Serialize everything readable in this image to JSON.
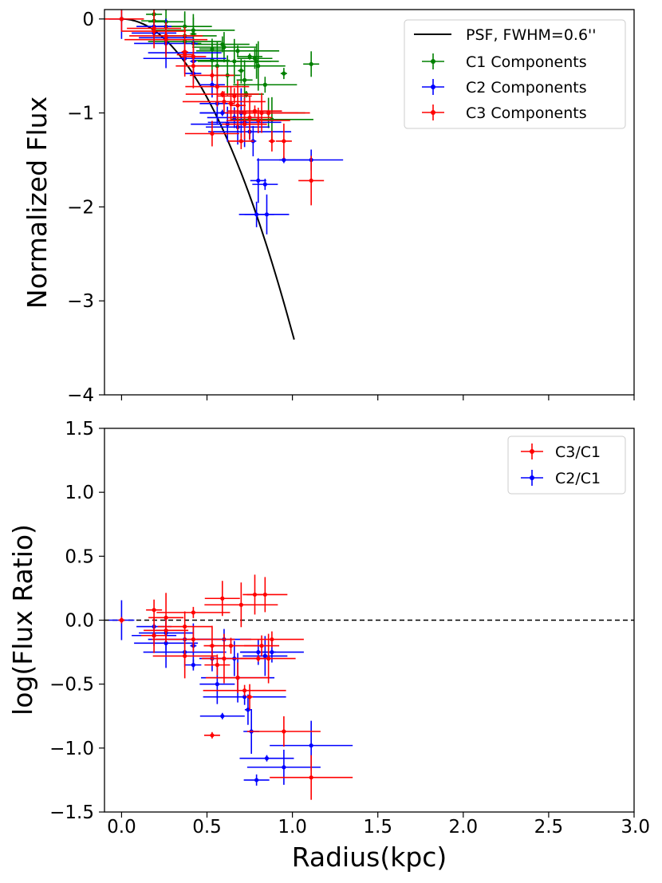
{
  "chart_data": [
    {
      "type": "scatter",
      "panel": "top",
      "ylabel": "Normalized Flux",
      "xlim": [
        -0.1,
        3.0
      ],
      "ylim": [
        -4,
        0.1
      ],
      "yticks": [
        0,
        -1,
        -2,
        -3,
        -4
      ],
      "ytick_labels": [
        "0",
        "−1",
        "−2",
        "−3",
        "−4"
      ],
      "grid": false,
      "legend_position": "top-right",
      "psf_curve": {
        "name": "PSF, FWHM=0.6''",
        "color": "#000000",
        "fwhm_kpc": 0.6,
        "x_end": 1.01
      },
      "series": [
        {
          "name": "C1 Components",
          "color": "#008000",
          "points": [
            {
              "x": 0.0,
              "y": 0.0
            },
            {
              "x": 0.19,
              "y": 0.05
            },
            {
              "x": 0.19,
              "y": -0.02
            },
            {
              "x": 0.26,
              "y": -0.03
            },
            {
              "x": 0.26,
              "y": -0.08
            },
            {
              "x": 0.37,
              "y": -0.08
            },
            {
              "x": 0.37,
              "y": -0.18
            },
            {
              "x": 0.37,
              "y": -0.24
            },
            {
              "x": 0.42,
              "y": -0.12
            },
            {
              "x": 0.42,
              "y": -0.16
            },
            {
              "x": 0.42,
              "y": -0.26
            },
            {
              "x": 0.53,
              "y": -0.32
            },
            {
              "x": 0.53,
              "y": -0.44
            },
            {
              "x": 0.56,
              "y": -0.5
            },
            {
              "x": 0.59,
              "y": -0.27
            },
            {
              "x": 0.6,
              "y": -0.3
            },
            {
              "x": 0.66,
              "y": -0.45
            },
            {
              "x": 0.68,
              "y": -0.34
            },
            {
              "x": 0.7,
              "y": -0.55
            },
            {
              "x": 0.72,
              "y": -0.65
            },
            {
              "x": 0.75,
              "y": -0.4
            },
            {
              "x": 0.78,
              "y": -0.42
            },
            {
              "x": 0.79,
              "y": -0.45
            },
            {
              "x": 0.8,
              "y": -0.5
            },
            {
              "x": 0.84,
              "y": -0.7
            },
            {
              "x": 0.86,
              "y": -1.0
            },
            {
              "x": 0.88,
              "y": -1.07
            },
            {
              "x": 0.95,
              "y": -0.58
            },
            {
              "x": 1.11,
              "y": -0.48
            },
            {
              "x": 0.62,
              "y": -0.6
            },
            {
              "x": 0.73,
              "y": -0.8
            }
          ]
        },
        {
          "name": "C2 Components",
          "color": "#0000ff",
          "points": [
            {
              "x": 0.0,
              "y": 0.0
            },
            {
              "x": 0.19,
              "y": -0.08
            },
            {
              "x": 0.19,
              "y": -0.15
            },
            {
              "x": 0.26,
              "y": -0.2
            },
            {
              "x": 0.26,
              "y": -0.26
            },
            {
              "x": 0.37,
              "y": -0.36
            },
            {
              "x": 0.37,
              "y": -0.42
            },
            {
              "x": 0.42,
              "y": -0.45
            },
            {
              "x": 0.42,
              "y": -0.58
            },
            {
              "x": 0.53,
              "y": -0.7
            },
            {
              "x": 0.56,
              "y": -0.9
            },
            {
              "x": 0.59,
              "y": -1.0
            },
            {
              "x": 0.66,
              "y": -1.05
            },
            {
              "x": 0.68,
              "y": -1.15
            },
            {
              "x": 0.72,
              "y": -1.1
            },
            {
              "x": 0.75,
              "y": -1.2
            },
            {
              "x": 0.77,
              "y": -1.3
            },
            {
              "x": 0.8,
              "y": -1.72
            },
            {
              "x": 0.84,
              "y": -1.76
            },
            {
              "x": 0.79,
              "y": -2.08
            },
            {
              "x": 0.85,
              "y": -2.08
            },
            {
              "x": 0.95,
              "y": -1.5
            },
            {
              "x": 1.11,
              "y": -1.5
            },
            {
              "x": 0.62,
              "y": -1.12
            },
            {
              "x": 0.7,
              "y": -1.0
            }
          ]
        },
        {
          "name": "C3 Components",
          "color": "#ff0000",
          "points": [
            {
              "x": 0.0,
              "y": 0.0
            },
            {
              "x": 0.19,
              "y": -0.1
            },
            {
              "x": 0.19,
              "y": -0.13
            },
            {
              "x": 0.26,
              "y": -0.18
            },
            {
              "x": 0.26,
              "y": -0.22
            },
            {
              "x": 0.37,
              "y": -0.35
            },
            {
              "x": 0.37,
              "y": -0.38
            },
            {
              "x": 0.42,
              "y": -0.4
            },
            {
              "x": 0.42,
              "y": -0.5
            },
            {
              "x": 0.53,
              "y": -0.6
            },
            {
              "x": 0.53,
              "y": -1.22
            },
            {
              "x": 0.56,
              "y": -0.72
            },
            {
              "x": 0.59,
              "y": -0.8
            },
            {
              "x": 0.6,
              "y": -0.88
            },
            {
              "x": 0.64,
              "y": -0.9
            },
            {
              "x": 0.68,
              "y": -0.92
            },
            {
              "x": 0.7,
              "y": -1.3
            },
            {
              "x": 0.72,
              "y": -1.0
            },
            {
              "x": 0.75,
              "y": -1.05
            },
            {
              "x": 0.78,
              "y": -0.98
            },
            {
              "x": 0.8,
              "y": -1.08
            },
            {
              "x": 0.82,
              "y": -1.0
            },
            {
              "x": 0.86,
              "y": -1.0
            },
            {
              "x": 0.88,
              "y": -1.3
            },
            {
              "x": 0.95,
              "y": -1.3
            },
            {
              "x": 1.11,
              "y": -1.72
            },
            {
              "x": 0.66,
              "y": -0.82
            },
            {
              "x": 0.72,
              "y": -1.12
            }
          ]
        }
      ]
    },
    {
      "type": "scatter",
      "panel": "bottom",
      "xlabel": "Radius(kpc)",
      "ylabel": "log(Flux Ratio)",
      "xlim": [
        -0.1,
        3.0
      ],
      "ylim": [
        -1.5,
        1.5
      ],
      "xticks": [
        0.0,
        0.5,
        1.0,
        1.5,
        2.0,
        2.5,
        3.0
      ],
      "xtick_labels": [
        "0.0",
        "0.5",
        "1.0",
        "1.5",
        "2.0",
        "2.5",
        "3.0"
      ],
      "yticks": [
        1.5,
        1.0,
        0.5,
        0.0,
        -0.5,
        -1.0,
        -1.5
      ],
      "ytick_labels": [
        "1.5",
        "1.0",
        "0.5",
        "0.0",
        "−0.5",
        "−1.0",
        "−1.5"
      ],
      "grid": false,
      "legend_position": "top-right",
      "reference_line": {
        "y": 0.0,
        "style": "dashed",
        "color": "#000000"
      },
      "series": [
        {
          "name": "C3/C1",
          "color": "#ff0000",
          "points": [
            {
              "x": 0.0,
              "y": 0.0
            },
            {
              "x": 0.19,
              "y": 0.08
            },
            {
              "x": 0.19,
              "y": -0.12
            },
            {
              "x": 0.26,
              "y": 0.02
            },
            {
              "x": 0.26,
              "y": -0.08
            },
            {
              "x": 0.37,
              "y": -0.05
            },
            {
              "x": 0.37,
              "y": -0.28
            },
            {
              "x": 0.42,
              "y": 0.06
            },
            {
              "x": 0.42,
              "y": -0.15
            },
            {
              "x": 0.53,
              "y": -0.2
            },
            {
              "x": 0.53,
              "y": -0.9
            },
            {
              "x": 0.56,
              "y": -0.35
            },
            {
              "x": 0.59,
              "y": 0.17
            },
            {
              "x": 0.6,
              "y": -0.3
            },
            {
              "x": 0.64,
              "y": -0.2
            },
            {
              "x": 0.68,
              "y": -0.45
            },
            {
              "x": 0.7,
              "y": 0.12
            },
            {
              "x": 0.72,
              "y": -0.55
            },
            {
              "x": 0.75,
              "y": -0.6
            },
            {
              "x": 0.78,
              "y": 0.2
            },
            {
              "x": 0.8,
              "y": -0.3
            },
            {
              "x": 0.82,
              "y": -0.2
            },
            {
              "x": 0.84,
              "y": 0.2
            },
            {
              "x": 0.86,
              "y": -0.3
            },
            {
              "x": 0.88,
              "y": -0.15
            },
            {
              "x": 0.95,
              "y": -0.87
            },
            {
              "x": 1.11,
              "y": -1.23
            }
          ]
        },
        {
          "name": "C2/C1",
          "color": "#0000ff",
          "points": [
            {
              "x": 0.0,
              "y": 0.0
            },
            {
              "x": 0.19,
              "y": -0.05
            },
            {
              "x": 0.19,
              "y": -0.12
            },
            {
              "x": 0.26,
              "y": -0.1
            },
            {
              "x": 0.26,
              "y": -0.18
            },
            {
              "x": 0.37,
              "y": -0.15
            },
            {
              "x": 0.37,
              "y": -0.25
            },
            {
              "x": 0.42,
              "y": -0.2
            },
            {
              "x": 0.42,
              "y": -0.35
            },
            {
              "x": 0.53,
              "y": -0.3
            },
            {
              "x": 0.56,
              "y": -0.5
            },
            {
              "x": 0.59,
              "y": -0.75
            },
            {
              "x": 0.6,
              "y": -0.15
            },
            {
              "x": 0.66,
              "y": -0.3
            },
            {
              "x": 0.68,
              "y": -0.45
            },
            {
              "x": 0.72,
              "y": -0.6
            },
            {
              "x": 0.74,
              "y": -0.7
            },
            {
              "x": 0.76,
              "y": -0.87
            },
            {
              "x": 0.79,
              "y": -1.25
            },
            {
              "x": 0.8,
              "y": -0.25
            },
            {
              "x": 0.84,
              "y": -0.28
            },
            {
              "x": 0.85,
              "y": -1.08
            },
            {
              "x": 0.88,
              "y": -0.25
            },
            {
              "x": 0.95,
              "y": -1.15
            },
            {
              "x": 1.11,
              "y": -0.98
            }
          ]
        }
      ]
    }
  ]
}
